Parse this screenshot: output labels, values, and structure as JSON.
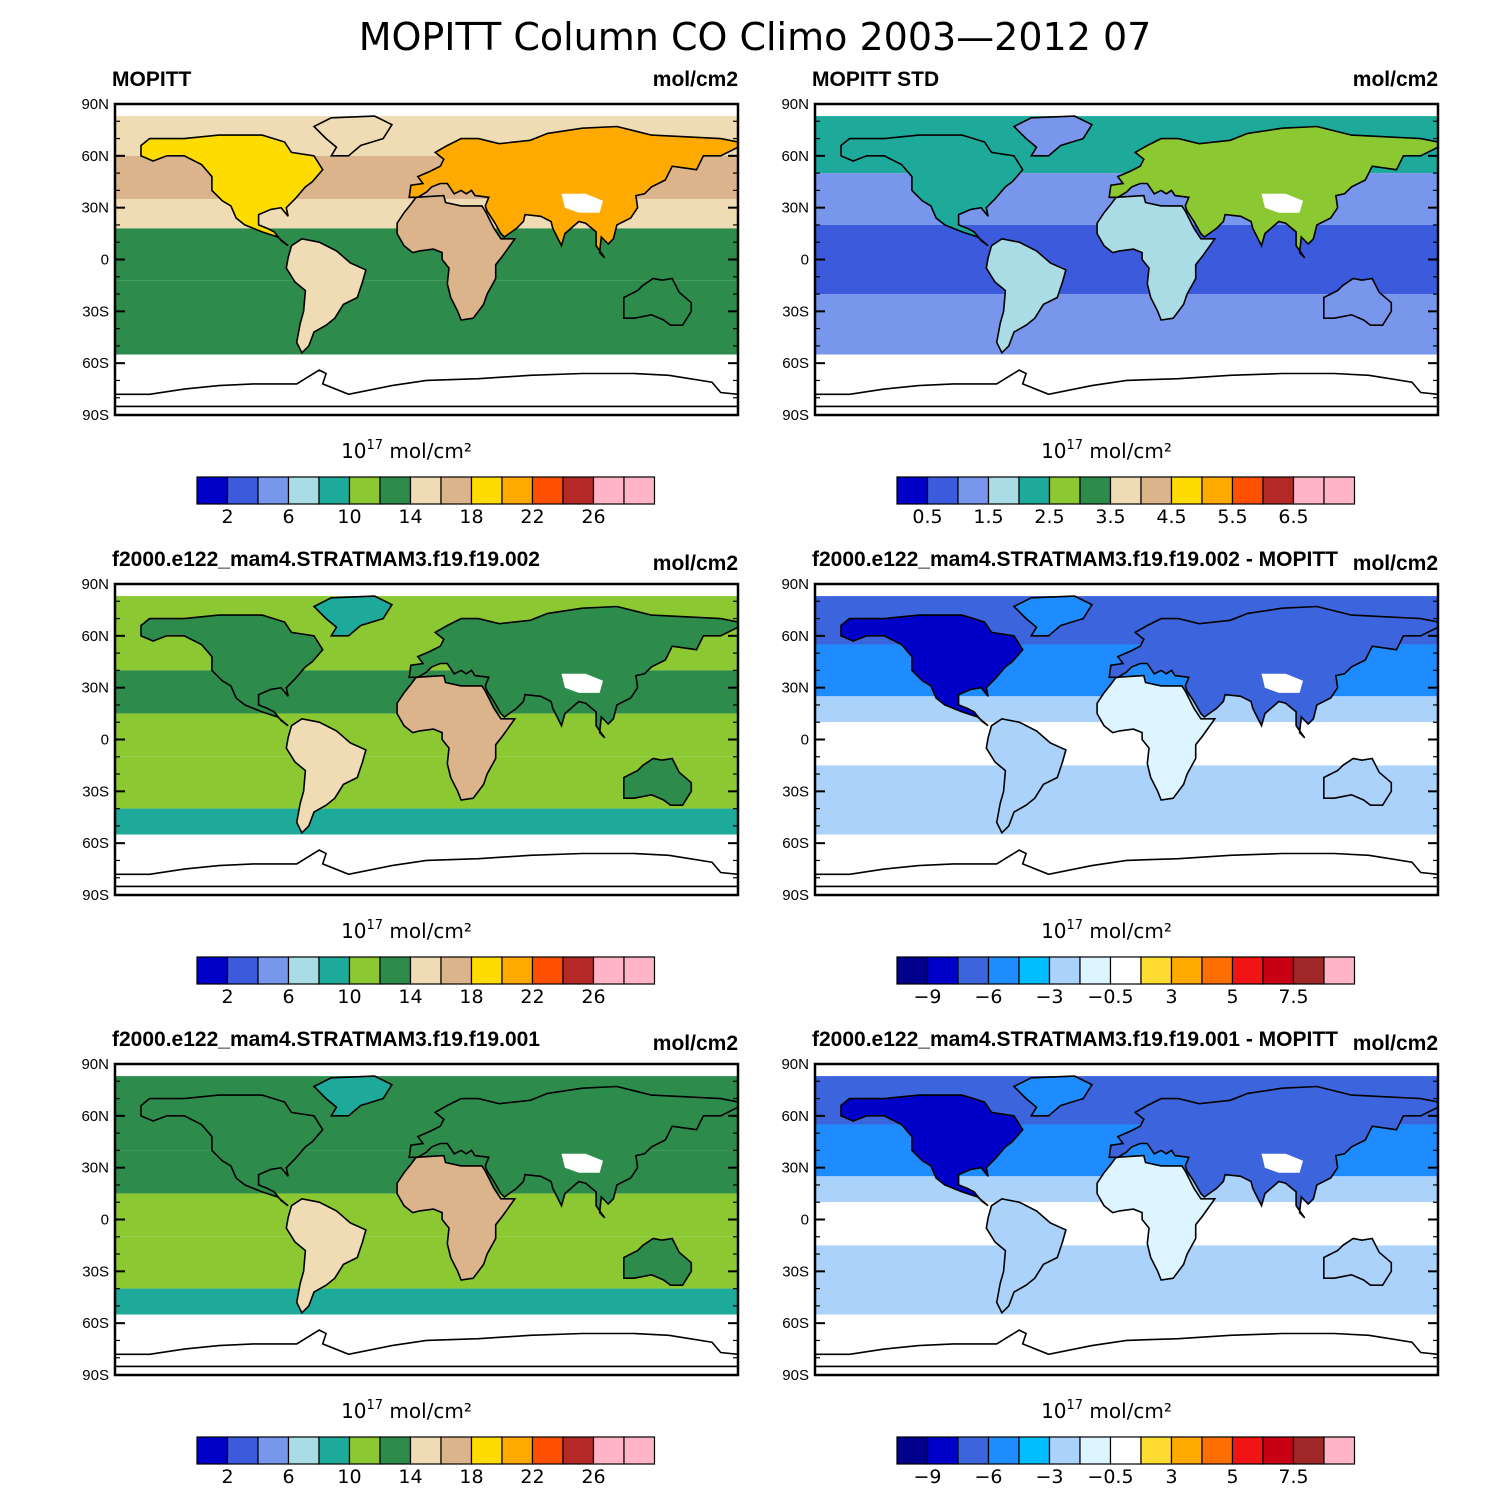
{
  "figure_title": "MOPITT Column CO Climo 2003—2012 07",
  "chart_data": [
    {
      "type": "heatmap",
      "panel": "top-left",
      "left_label": "MOPITT",
      "right_label": "mol/cm2",
      "lat_ticks": [
        "90N",
        "60N",
        "30N",
        "0",
        "30S",
        "60S",
        "90S"
      ],
      "colorbar_title": "10",
      "colorbar_exponent": "17",
      "colorbar_units": "mol/cm²",
      "colorbar_labels": [
        "2",
        "6",
        "10",
        "14",
        "18",
        "22",
        "26"
      ],
      "colors": [
        "#0000c8",
        "#3c5adc",
        "#7896eb",
        "#aadce6",
        "#1eaa9b",
        "#8cc832",
        "#2d8c4b",
        "#f0dcb4",
        "#dcb48c",
        "#ffdc00",
        "#ffaa00",
        "#ff5000",
        "#b42828",
        "#ffb4c8",
        "#ffb4c8"
      ]
    },
    {
      "type": "heatmap",
      "panel": "top-right",
      "left_label": "MOPITT STD",
      "right_label": "mol/cm2",
      "lat_ticks": [
        "90N",
        "60N",
        "30N",
        "0",
        "30S",
        "60S",
        "90S"
      ],
      "colorbar_title": "10",
      "colorbar_exponent": "17",
      "colorbar_units": "mol/cm²",
      "colorbar_labels": [
        "0.5",
        "1.5",
        "2.5",
        "3.5",
        "4.5",
        "5.5",
        "6.5"
      ],
      "colors": [
        "#0000c8",
        "#3c5adc",
        "#7896eb",
        "#aadce6",
        "#1eaa9b",
        "#8cc832",
        "#2d8c4b",
        "#f0dcb4",
        "#dcb48c",
        "#ffdc00",
        "#ffaa00",
        "#ff5000",
        "#b42828",
        "#ffb4c8",
        "#ffb4c8"
      ]
    },
    {
      "type": "heatmap",
      "panel": "middle-left",
      "left_label": "f2000.e122_mam4.STRATMAM3.f19.f19.002",
      "right_label": "mol/cm2",
      "lat_ticks": [
        "90N",
        "60N",
        "30N",
        "0",
        "30S",
        "60S",
        "90S"
      ],
      "colorbar_title": "10",
      "colorbar_exponent": "17",
      "colorbar_units": "mol/cm²",
      "colorbar_labels": [
        "2",
        "6",
        "10",
        "14",
        "18",
        "22",
        "26"
      ],
      "colors": [
        "#0000c8",
        "#3c5adc",
        "#7896eb",
        "#aadce6",
        "#1eaa9b",
        "#8cc832",
        "#2d8c4b",
        "#f0dcb4",
        "#dcb48c",
        "#ffdc00",
        "#ffaa00",
        "#ff5000",
        "#b42828",
        "#ffb4c8",
        "#ffb4c8"
      ]
    },
    {
      "type": "heatmap",
      "panel": "middle-right",
      "left_label": "f2000.e122_mam4.STRATMAM3.f19.f19.002 - MOPITT",
      "right_label": "mol/cm2",
      "lat_ticks": [
        "90N",
        "60N",
        "30N",
        "0",
        "30S",
        "60S",
        "90S"
      ],
      "colorbar_title": "10",
      "colorbar_exponent": "17",
      "colorbar_units": "mol/cm²",
      "colorbar_labels": [
        "−9",
        "−6",
        "−3",
        "−0.5",
        "3",
        "5",
        "7.5"
      ],
      "colors": [
        "#00008c",
        "#0000c8",
        "#3c64dc",
        "#1e8cff",
        "#00beff",
        "#aad2fa",
        "#dcf5ff",
        "#ffffff",
        "#ffdc32",
        "#ffaa00",
        "#ff6e00",
        "#f01414",
        "#c80014",
        "#a02828",
        "#ffb4c8"
      ]
    },
    {
      "type": "heatmap",
      "panel": "bottom-left",
      "left_label": "f2000.e122_mam4.STRATMAM3.f19.f19.001",
      "right_label": "mol/cm2",
      "lat_ticks": [
        "90N",
        "60N",
        "30N",
        "0",
        "30S",
        "60S",
        "90S"
      ],
      "colorbar_title": "10",
      "colorbar_exponent": "17",
      "colorbar_units": "mol/cm²",
      "colorbar_labels": [
        "2",
        "6",
        "10",
        "14",
        "18",
        "22",
        "26"
      ],
      "colors": [
        "#0000c8",
        "#3c5adc",
        "#7896eb",
        "#aadce6",
        "#1eaa9b",
        "#8cc832",
        "#2d8c4b",
        "#f0dcb4",
        "#dcb48c",
        "#ffdc00",
        "#ffaa00",
        "#ff5000",
        "#b42828",
        "#ffb4c8",
        "#ffb4c8"
      ]
    },
    {
      "type": "heatmap",
      "panel": "bottom-right",
      "left_label": "f2000.e122_mam4.STRATMAM3.f19.f19.001 - MOPITT",
      "right_label": "mol/cm2",
      "lat_ticks": [
        "90N",
        "60N",
        "30N",
        "0",
        "30S",
        "60S",
        "90S"
      ],
      "colorbar_title": "10",
      "colorbar_exponent": "17",
      "colorbar_units": "mol/cm²",
      "colorbar_labels": [
        "−9",
        "−6",
        "−3",
        "−0.5",
        "3",
        "5",
        "7.5"
      ],
      "colors": [
        "#00008c",
        "#0000c8",
        "#3c64dc",
        "#1e8cff",
        "#00beff",
        "#aad2fa",
        "#dcf5ff",
        "#ffffff",
        "#ffdc32",
        "#ffaa00",
        "#ff6e00",
        "#f01414",
        "#c80014",
        "#a02828",
        "#ffb4c8"
      ]
    }
  ]
}
